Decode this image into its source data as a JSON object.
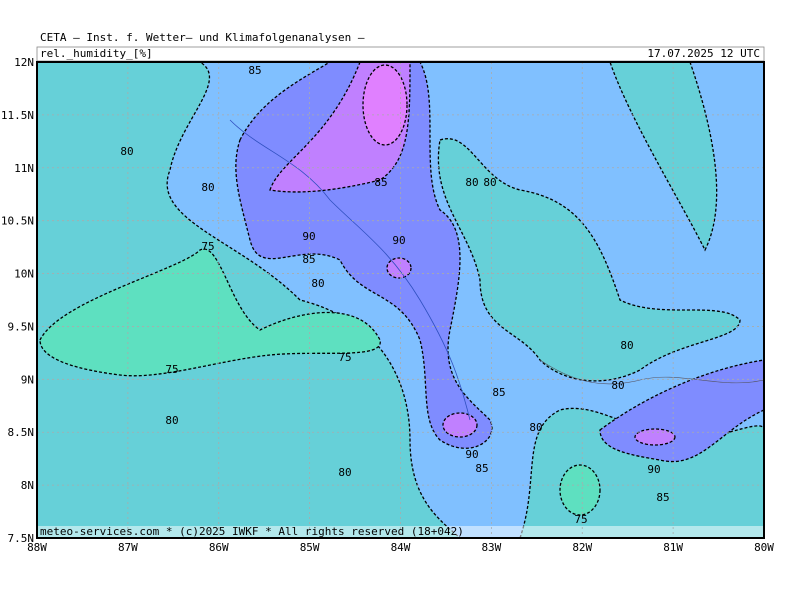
{
  "header": {
    "title": "CETA — Inst. f. Wetter— und Klimafolgenanalysen —",
    "variable": "rel._humidity_[%]",
    "valid_time": "17.07.2025 12 UTC"
  },
  "map": {
    "lat_labels": [
      "12N",
      "11.5N",
      "11N",
      "10.5N",
      "10N",
      "9.5N",
      "9N",
      "8.5N",
      "8N",
      "7.5N"
    ],
    "lon_labels": [
      "88W",
      "87W",
      "86W",
      "85W",
      "84W",
      "83W",
      "82W",
      "81W",
      "80W"
    ],
    "contour_labels": [
      85,
      80,
      80,
      75,
      90,
      85,
      80,
      85,
      90,
      80,
      80,
      75,
      75,
      80,
      80,
      85,
      80,
      90,
      85,
      80,
      80,
      90,
      85,
      75
    ]
  },
  "footer": "meteo-services.com * (c)2025 IWKF * All rights reserved (18+042)"
}
